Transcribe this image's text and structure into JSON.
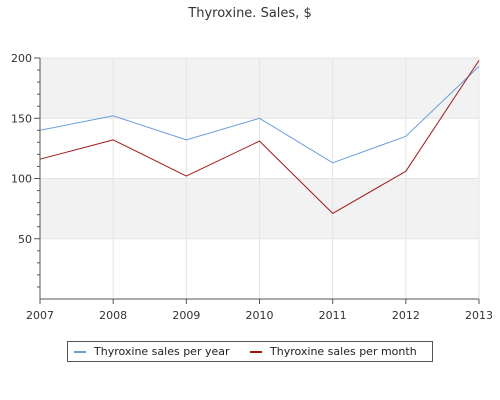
{
  "chart_data": {
    "type": "line",
    "title": "Thyroxine. Sales, $",
    "x": [
      "2007",
      "2008",
      "2009",
      "2010",
      "2011",
      "2012",
      "2013"
    ],
    "ylim": [
      0,
      200
    ],
    "yticks": [
      50,
      100,
      150,
      200
    ],
    "grid": true,
    "legend_position": "bottom",
    "series": [
      {
        "name": "Thyroxine sales per year",
        "color": "#6a9fdc",
        "values": [
          140,
          152,
          132,
          150,
          113,
          135,
          193
        ]
      },
      {
        "name": "Thyroxine sales per month",
        "color": "#a01818",
        "values": [
          116,
          132,
          102,
          131,
          71,
          106,
          198
        ]
      }
    ]
  }
}
